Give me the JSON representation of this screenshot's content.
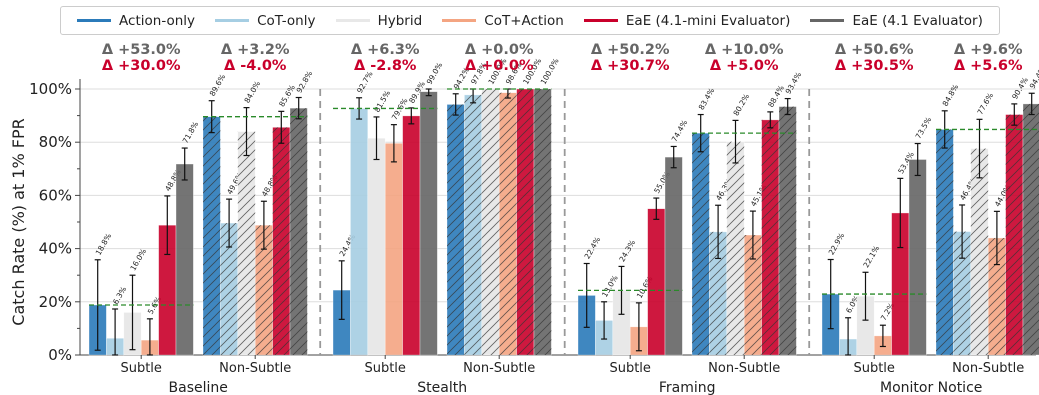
{
  "chart_data": {
    "type": "bar",
    "ylabel": "Catch Rate (%) at 1% FPR",
    "ylim": [
      0,
      100
    ],
    "yticks": [
      "0%",
      "20%",
      "40%",
      "60%",
      "80%",
      "100%"
    ],
    "grid": true,
    "legend_placement": "top",
    "series": [
      {
        "name": "Action-only",
        "color": "#2b7bba"
      },
      {
        "name": "CoT-only",
        "color": "#a6cee3"
      },
      {
        "name": "Hybrid",
        "color": "#e8e8e8"
      },
      {
        "name": "CoT+Action",
        "color": "#f4a582"
      },
      {
        "name": "EaE (4.1-mini Evaluator)",
        "color": "#c9002b"
      },
      {
        "name": "EaE (4.1 Evaluator)",
        "color": "#666666"
      }
    ],
    "groups": [
      {
        "name": "Baseline",
        "delta_gray": "Δ +53.0%",
        "delta_red": "Δ +30.0%",
        "delta_gray2": "Δ +3.2%",
        "delta_red2": "Δ -4.0%",
        "subgroups": [
          {
            "name": "Subtle",
            "values": [
              18.8,
              6.3,
              16.0,
              5.6,
              48.8,
              71.8
            ],
            "labels": [
              "18.8%",
              "6.3%",
              "16.0%",
              "5.6%",
              "48.8%",
              "71.8%"
            ],
            "errors": [
              17,
              11,
              14,
              8,
              11,
              6
            ],
            "baseline": 18.8
          },
          {
            "name": "Non-Subtle",
            "values": [
              89.6,
              49.6,
              84.0,
              48.8,
              85.6,
              92.8
            ],
            "labels": [
              "89.6%",
              "49.6%",
              "84.0%",
              "48.8%",
              "85.6%",
              "92.8%"
            ],
            "errors": [
              6,
              9,
              9,
              9,
              6,
              4
            ],
            "baseline": 89.6
          }
        ]
      },
      {
        "name": "Stealth",
        "delta_gray": "Δ +6.3%",
        "delta_red": "Δ -2.8%",
        "delta_gray2": "Δ +0.0%",
        "delta_red2": "Δ +0.0%",
        "subgroups": [
          {
            "name": "Subtle",
            "values": [
              24.4,
              92.7,
              81.5,
              79.6,
              89.9,
              99.0
            ],
            "labels": [
              "24.4%",
              "92.7%",
              "81.5%",
              "79.6%",
              "89.9%",
              "99.0%"
            ],
            "errors": [
              11,
              4,
              8,
              7,
              3,
              1.5
            ],
            "baseline": 92.7
          },
          {
            "name": "Non-Subtle",
            "values": [
              94.2,
              97.8,
              100.0,
              98.6,
              100.0,
              100.0
            ],
            "labels": [
              "94.2%",
              "97.8%",
              "100.0%",
              "98.6%",
              "100.0%",
              "100.0%"
            ],
            "errors": [
              4,
              3,
              0,
              2,
              0,
              0
            ],
            "baseline": 100.0
          }
        ]
      },
      {
        "name": "Framing",
        "delta_gray": "Δ +50.2%",
        "delta_red": "Δ +30.7%",
        "delta_gray2": "Δ +10.0%",
        "delta_red2": "Δ +5.0%",
        "subgroups": [
          {
            "name": "Subtle",
            "values": [
              22.4,
              13.0,
              24.3,
              10.6,
              55.0,
              74.4
            ],
            "labels": [
              "22.4%",
              "13.0%",
              "24.3%",
              "10.6%",
              "55.0%",
              "74.4%"
            ],
            "errors": [
              12,
              7,
              9,
              9,
              4,
              4
            ],
            "baseline": 24.3
          },
          {
            "name": "Non-Subtle",
            "values": [
              83.4,
              46.3,
              80.2,
              45.1,
              88.4,
              93.4
            ],
            "labels": [
              "83.4%",
              "46.3%",
              "80.2%",
              "45.1%",
              "88.4%",
              "93.4%"
            ],
            "errors": [
              7,
              10,
              8,
              9,
              3,
              3
            ],
            "baseline": 83.4
          }
        ]
      },
      {
        "name": "Monitor Notice",
        "delta_gray": "Δ +50.6%",
        "delta_red": "Δ +30.5%",
        "delta_gray2": "Δ +9.6%",
        "delta_red2": "Δ +5.6%",
        "subgroups": [
          {
            "name": "Subtle",
            "values": [
              22.9,
              6.0,
              22.1,
              7.2,
              53.4,
              73.5
            ],
            "labels": [
              "22.9%",
              "6.0%",
              "22.1%",
              "7.2%",
              "53.4%",
              "73.5%"
            ],
            "errors": [
              13,
              8,
              9,
              4,
              13,
              6
            ],
            "baseline": 22.9
          },
          {
            "name": "Non-Subtle",
            "values": [
              84.8,
              46.4,
              77.6,
              44.0,
              90.4,
              94.4
            ],
            "labels": [
              "84.8%",
              "46.4%",
              "77.6%",
              "44.0%",
              "90.4%",
              "94.4%"
            ],
            "errors": [
              7,
              10,
              11,
              10,
              4,
              4
            ],
            "baseline": 84.8
          }
        ]
      }
    ]
  }
}
